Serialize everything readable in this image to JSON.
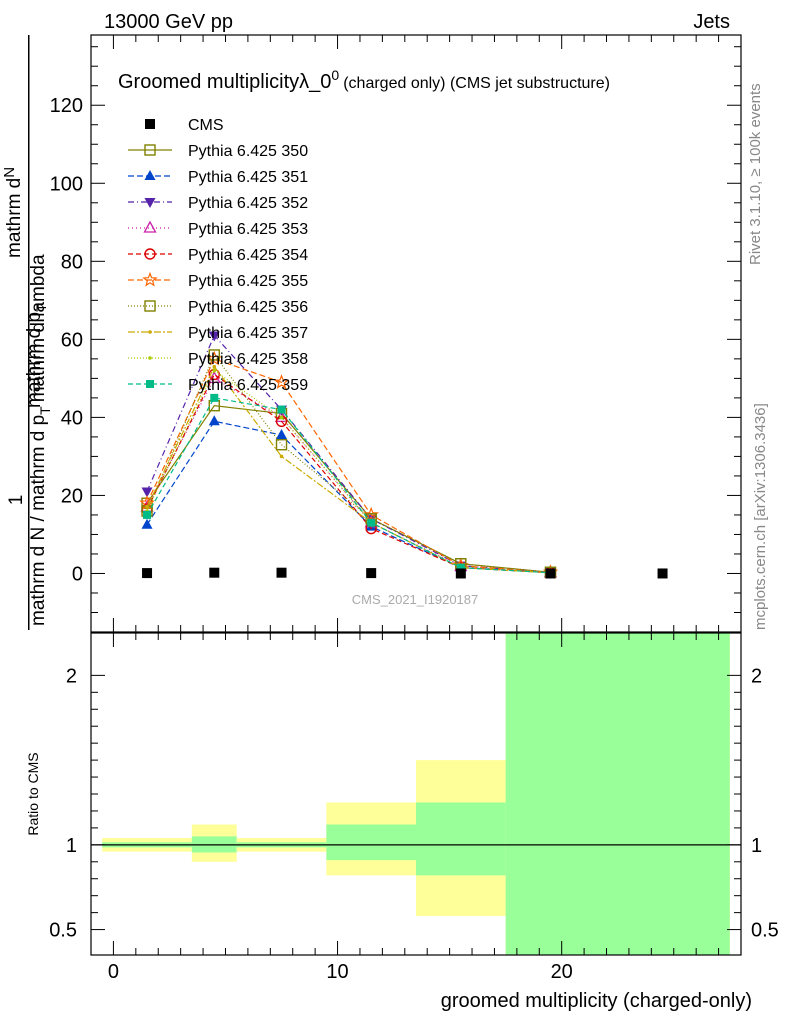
{
  "header": {
    "left": "13000 GeV pp",
    "right": "Jets"
  },
  "side_text": {
    "rivet": "Rivet 3.1.10, ≥ 100k events",
    "mcplots": "mcplots.cern.ch [arXiv:1306.3436]"
  },
  "colors": {
    "data": "#000000",
    "band_outer": "#ffff99",
    "band_inner": "#99ff99"
  },
  "chart_data": {
    "type": "line",
    "title_main": "Groomed multiplicityλ_0",
    "title_sup": "0",
    "title_small": "(charged only) (CMS jet substructure)",
    "watermark": "CMS_2021_I1920187",
    "ylabel_num": "1",
    "ylabel_den_l1": "mathrm d N / mathrm d p",
    "ylabel_den_l2": "mathrm d p_T mathrm d lambda",
    "ylabel_den_sub": "T",
    "ylabel_top": "mathrm d",
    "ylabel_top2": "N",
    "ylabel_top_mid": "mathrm d p",
    "ylabel_top_T": "T",
    "ylabel_top3": "mathrm d lambda",
    "xlabel": "groomed multiplicity (charged-only)",
    "ratio_ylabel": "Ratio to CMS",
    "xlim": [
      -1,
      28
    ],
    "ylim": [
      -15,
      138
    ],
    "yticks": [
      0,
      20,
      40,
      60,
      80,
      100,
      120
    ],
    "ytick_labels": [
      "0",
      "20",
      "40",
      "60",
      "80",
      "100",
      "120"
    ],
    "xticks": [
      0,
      10,
      20
    ],
    "xtick_labels": [
      "0",
      "10",
      "20"
    ],
    "ratio_ylim": [
      0.35,
      2.25
    ],
    "ratio_yticks": [
      0.5,
      1,
      2
    ],
    "ratio_ytick_labels": [
      "0.5",
      "1",
      "2"
    ],
    "data": {
      "name": "CMS",
      "x": [
        1.5,
        4.5,
        7.5,
        11.5,
        15.5,
        19.5,
        24.5
      ],
      "y": [
        0.1,
        0.2,
        0.2,
        0.1,
        0.0,
        0.0,
        0.0
      ]
    },
    "x": [
      1.5,
      4.5,
      7.5,
      11.5,
      15.5,
      19.5
    ],
    "series": [
      {
        "name": "Pythia 6.425 350",
        "color": "#808000",
        "marker": "square_open",
        "dash": "solid",
        "values": [
          18,
          43,
          41,
          14,
          2.5,
          0.3
        ]
      },
      {
        "name": "Pythia 6.425 351",
        "color": "#0044cc",
        "marker": "triangle_up_filled",
        "dash": "6,3",
        "values": [
          12.5,
          39,
          35.5,
          12,
          1.5,
          0.2
        ]
      },
      {
        "name": "Pythia 6.425 352",
        "color": "#5522aa",
        "marker": "triangle_down_filled",
        "dash": "6,3,1,3",
        "values": [
          21,
          61,
          42,
          14,
          2,
          0.3
        ]
      },
      {
        "name": "Pythia 6.425 353",
        "color": "#cc22aa",
        "marker": "triangle_up_open",
        "dash": "1,3",
        "values": [
          17,
          50,
          40,
          13,
          1.8,
          0.2
        ]
      },
      {
        "name": "Pythia 6.425 354",
        "color": "#dd0000",
        "marker": "circle_open",
        "dash": "5,3",
        "values": [
          16.5,
          51,
          39,
          11.5,
          1.5,
          0.2
        ]
      },
      {
        "name": "Pythia 6.425 355",
        "color": "#ff6600",
        "marker": "star_open",
        "dash": "6,3",
        "values": [
          18,
          55,
          49,
          15,
          2,
          0.3
        ]
      },
      {
        "name": "Pythia 6.425 356",
        "color": "#808000",
        "marker": "square_open",
        "dash": "1,2",
        "values": [
          16,
          56,
          33,
          14,
          2.5,
          0.3
        ]
      },
      {
        "name": "Pythia 6.425 357",
        "color": "#ccaa00",
        "marker": "dot_small",
        "dash": "7,2,2,2",
        "values": [
          17,
          53,
          30,
          13,
          1.5,
          0.2
        ]
      },
      {
        "name": "Pythia 6.425 358",
        "color": "#aacc00",
        "marker": "dot_small",
        "dash": "1,2",
        "values": [
          16,
          52,
          40,
          13,
          1.5,
          0.2
        ]
      },
      {
        "name": "Pythia 6.425 359",
        "color": "#00bb88",
        "marker": "square_filled",
        "dash": "5,3",
        "values": [
          15,
          45,
          42,
          13,
          1.5,
          0.2
        ]
      }
    ],
    "ratio_bands": [
      {
        "xlo": -0.5,
        "xhi": 3.5,
        "outer": [
          0.96,
          1.04
        ],
        "inner": [
          0.985,
          1.015
        ]
      },
      {
        "xlo": 3.5,
        "xhi": 5.5,
        "outer": [
          0.9,
          1.12
        ],
        "inner": [
          0.955,
          1.05
        ]
      },
      {
        "xlo": 5.5,
        "xhi": 9.5,
        "outer": [
          0.96,
          1.04
        ],
        "inner": [
          0.985,
          1.015
        ]
      },
      {
        "xlo": 9.5,
        "xhi": 13.5,
        "outer": [
          0.82,
          1.25
        ],
        "inner": [
          0.91,
          1.12
        ]
      },
      {
        "xlo": 13.5,
        "xhi": 17.5,
        "outer": [
          0.58,
          1.5
        ],
        "inner": [
          0.82,
          1.25
        ]
      },
      {
        "xlo": 17.5,
        "xhi": 27.5,
        "outer": [
          0.35,
          2.25
        ],
        "inner": [
          0.35,
          2.25
        ]
      }
    ]
  }
}
